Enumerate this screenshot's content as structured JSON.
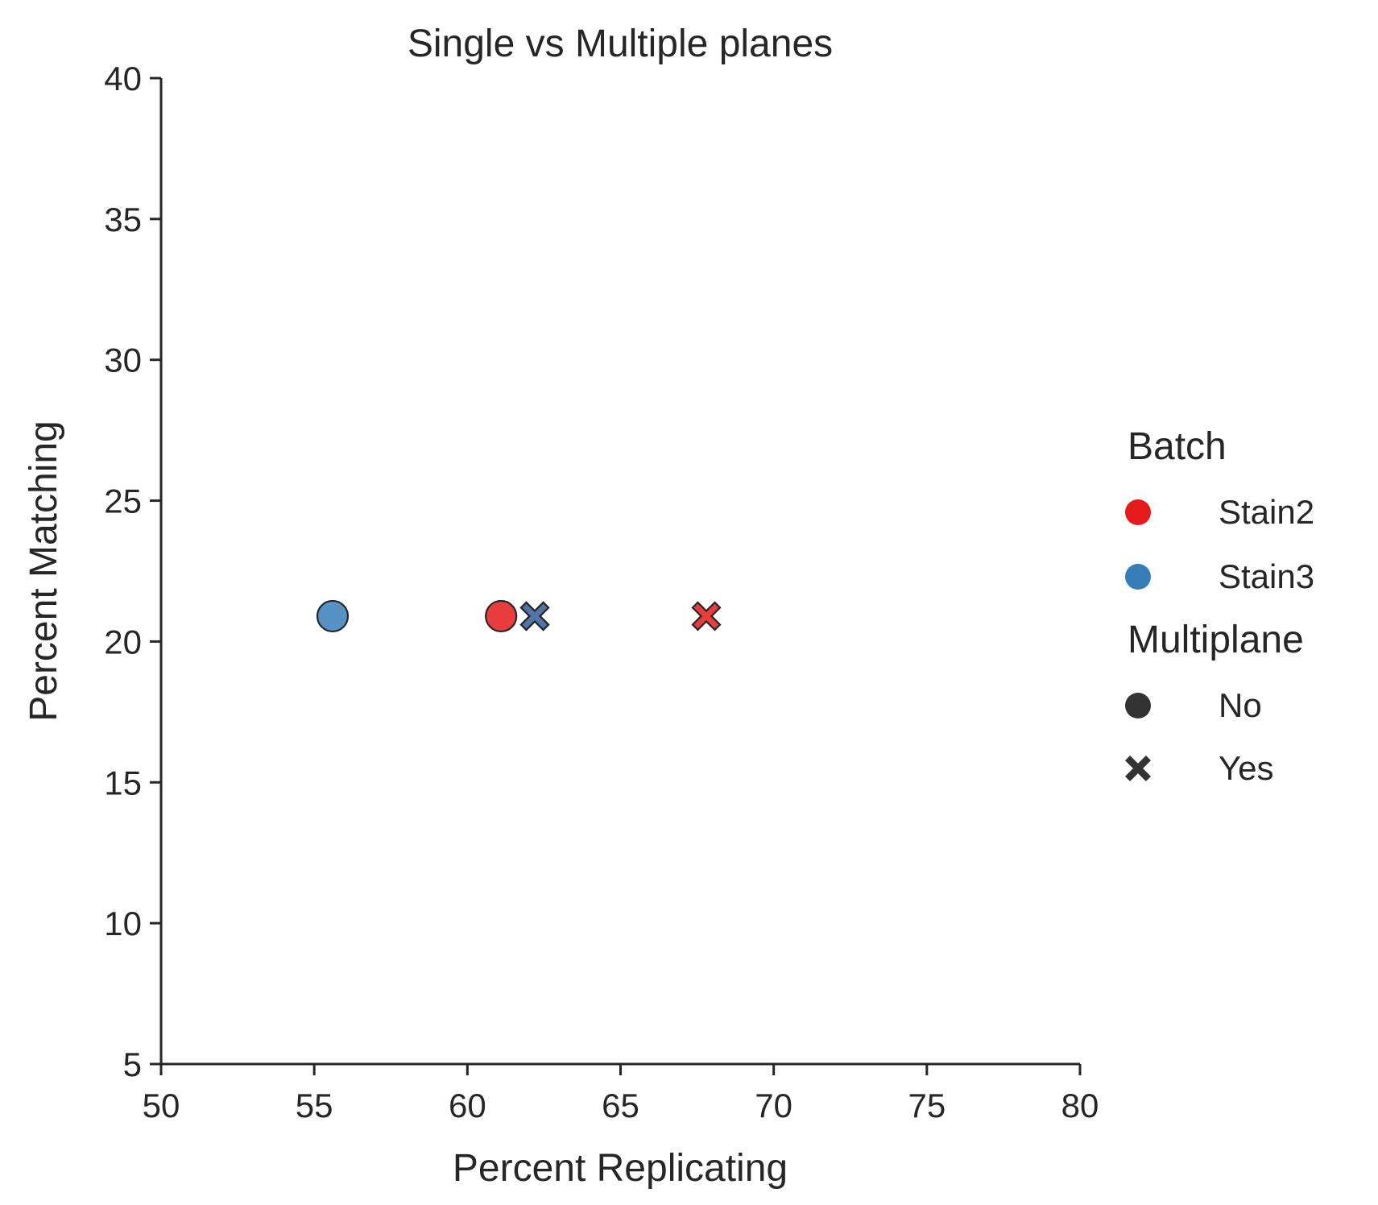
{
  "chart_data": {
    "type": "scatter",
    "title": "Single vs Multiple planes",
    "xlabel": "Percent Replicating",
    "ylabel": "Percent Matching",
    "xlim": [
      50,
      80
    ],
    "ylim": [
      5,
      40
    ],
    "xticks": [
      "50",
      "55",
      "60",
      "65",
      "70",
      "75",
      "80"
    ],
    "yticks": [
      "5",
      "10",
      "15",
      "20",
      "25",
      "30",
      "35",
      "40"
    ],
    "grid": false,
    "legend": {
      "placement": "right",
      "hue_title": "Batch",
      "hue_entries": [
        {
          "label": "Stain2",
          "color": "#e41a1c"
        },
        {
          "label": "Stain3",
          "color": "#377eb8"
        }
      ],
      "style_title": "Multiplane",
      "style_entries": [
        {
          "label": "No",
          "marker": "circle"
        },
        {
          "label": "Yes",
          "marker": "x"
        }
      ]
    },
    "points": [
      {
        "x": 55.6,
        "y": 20.9,
        "batch": "Stain3",
        "multiplane": "No"
      },
      {
        "x": 61.1,
        "y": 20.9,
        "batch": "Stain2",
        "multiplane": "No"
      },
      {
        "x": 62.2,
        "y": 20.9,
        "batch": "Stain2",
        "multiplane": "Yes"
      },
      {
        "x": 62.2,
        "y": 20.9,
        "batch": "Stain3",
        "multiplane": "Yes"
      },
      {
        "x": 67.8,
        "y": 20.9,
        "batch": "Stain2",
        "multiplane": "Yes"
      }
    ]
  }
}
